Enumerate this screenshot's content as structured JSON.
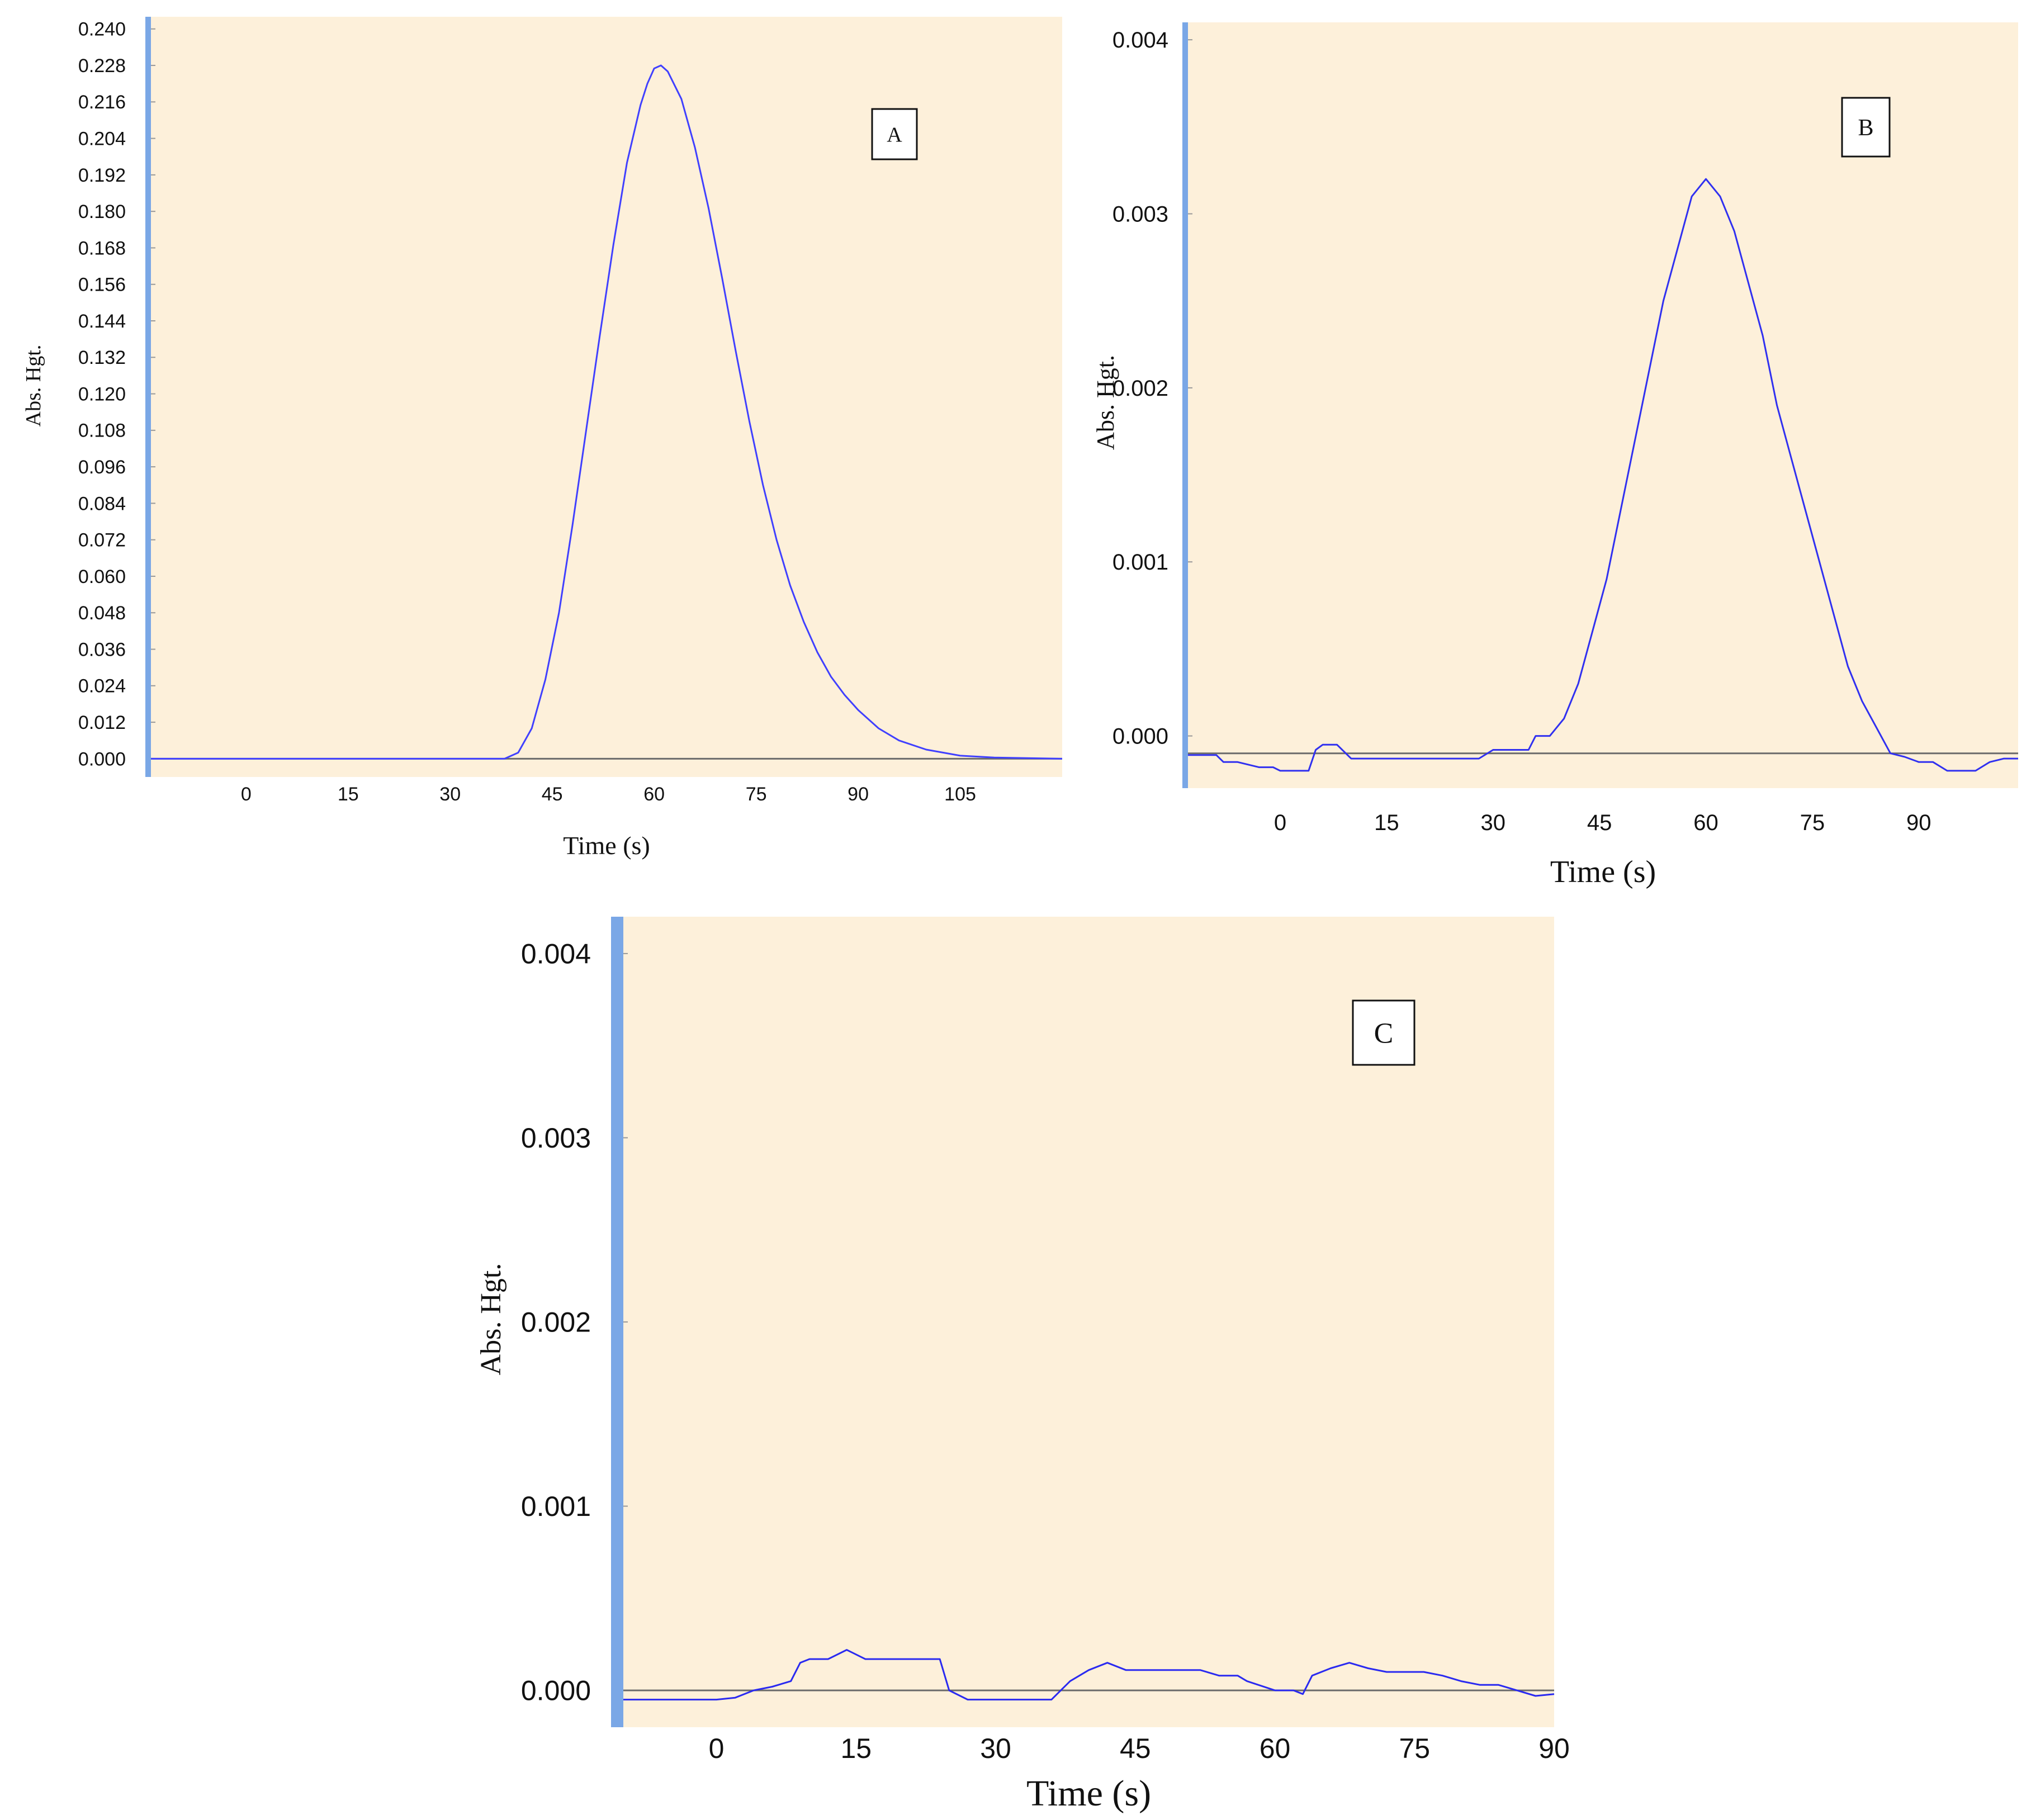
{
  "chart_data": [
    {
      "id": "A",
      "type": "line",
      "panel_label": "A",
      "xlabel": "Time (s)",
      "ylabel": "Abs. Hgt.",
      "xlim": [
        -14,
        120
      ],
      "ylim": [
        -0.006,
        0.244
      ],
      "xticks": [
        0,
        15,
        30,
        45,
        60,
        75,
        90,
        105
      ],
      "yticks": [
        "0.000",
        "0.012",
        "0.024",
        "0.036",
        "0.048",
        "0.060",
        "0.072",
        "0.084",
        "0.096",
        "0.108",
        "0.120",
        "0.132",
        "0.144",
        "0.156",
        "0.168",
        "0.180",
        "0.192",
        "0.204",
        "0.216",
        "0.228",
        "0.240"
      ],
      "baseline": 0,
      "series": [
        {
          "color": "#4040ff",
          "x": [
            -14,
            0,
            20,
            38,
            40,
            42,
            44,
            46,
            48,
            50,
            52,
            54,
            56,
            58,
            59,
            60,
            61,
            62,
            64,
            66,
            68,
            70,
            72,
            74,
            76,
            78,
            80,
            82,
            84,
            86,
            88,
            90,
            93,
            96,
            100,
            105,
            110,
            120
          ],
          "y": [
            0.0,
            0.0,
            0.0,
            0.0,
            0.002,
            0.01,
            0.026,
            0.048,
            0.077,
            0.108,
            0.139,
            0.169,
            0.196,
            0.215,
            0.222,
            0.227,
            0.228,
            0.226,
            0.217,
            0.201,
            0.181,
            0.158,
            0.134,
            0.111,
            0.09,
            0.072,
            0.057,
            0.045,
            0.035,
            0.027,
            0.021,
            0.016,
            0.01,
            0.006,
            0.003,
            0.001,
            0.0004,
            0.0
          ]
        }
      ]
    },
    {
      "id": "B",
      "type": "line",
      "panel_label": "B",
      "xlabel": "Time (s)",
      "ylabel": "Abs. Hgt.",
      "xlim": [
        -13,
        104
      ],
      "ylim": [
        -0.0003,
        0.0041
      ],
      "xticks": [
        0,
        15,
        30,
        45,
        60,
        75,
        90
      ],
      "yticks": [
        "0.000",
        "0.001",
        "0.002",
        "0.003",
        "0.004"
      ],
      "baseline": -0.0001,
      "series": [
        {
          "color": "#3030f0",
          "x": [
            -13,
            -9,
            -8,
            -6,
            -3,
            -1,
            0,
            3,
            4,
            5,
            6,
            8,
            10,
            12,
            16,
            20,
            25,
            28,
            30,
            33,
            35,
            36,
            38,
            40,
            42,
            44,
            46,
            48,
            50,
            52,
            54,
            56,
            58,
            60,
            62,
            64,
            66,
            68,
            70,
            72,
            74,
            76,
            78,
            80,
            82,
            84,
            86,
            88,
            90,
            92,
            94,
            96,
            98,
            100,
            102,
            104
          ],
          "y": [
            -0.00011,
            -0.00011,
            -0.00015,
            -0.00015,
            -0.00018,
            -0.00018,
            -0.0002,
            -0.0002,
            -0.0002,
            -8e-05,
            -5e-05,
            -5e-05,
            -0.00013,
            -0.00013,
            -0.00013,
            -0.00013,
            -0.00013,
            -0.00013,
            -8e-05,
            -8e-05,
            -8e-05,
            0.0,
            0.0,
            0.0001,
            0.0003,
            0.0006,
            0.0009,
            0.0013,
            0.0017,
            0.0021,
            0.0025,
            0.0028,
            0.0031,
            0.0032,
            0.0031,
            0.0029,
            0.0026,
            0.0023,
            0.0019,
            0.0016,
            0.0013,
            0.001,
            0.0007,
            0.0004,
            0.0002,
            5e-05,
            -0.0001,
            -0.00012,
            -0.00015,
            -0.00015,
            -0.0002,
            -0.0002,
            -0.0002,
            -0.00015,
            -0.00013,
            -0.00013
          ]
        }
      ]
    },
    {
      "id": "C",
      "type": "line",
      "panel_label": "C",
      "xlabel": "Time (s)",
      "ylabel": "Abs. Hgt.",
      "xlim": [
        -10,
        90
      ],
      "ylim": [
        -0.0002,
        0.0042
      ],
      "xticks": [
        0,
        15,
        30,
        45,
        60,
        75,
        "90"
      ],
      "yticks": [
        "0.000",
        "0.001",
        "0.002",
        "0.003",
        "0.004"
      ],
      "baseline": 0,
      "series": [
        {
          "color": "#2a2af0",
          "x": [
            -10,
            -8,
            -6,
            -4,
            -2,
            0,
            2,
            4,
            6,
            8,
            9,
            10,
            12,
            14,
            16,
            18,
            20,
            22,
            24,
            25,
            27,
            30,
            33,
            35,
            36,
            37,
            38,
            40,
            42,
            44,
            46,
            48,
            50,
            52,
            54,
            56,
            57,
            60,
            62,
            63,
            64,
            66,
            68,
            70,
            72,
            74,
            76,
            78,
            80,
            82,
            84,
            86,
            88,
            90
          ],
          "y": [
            -5e-05,
            -5e-05,
            -5e-05,
            -5e-05,
            -5e-05,
            -5e-05,
            -4e-05,
            0.0,
            2e-05,
            5e-05,
            0.00015,
            0.00017,
            0.00017,
            0.00022,
            0.00017,
            0.00017,
            0.00017,
            0.00017,
            0.00017,
            0.0,
            -5e-05,
            -5e-05,
            -5e-05,
            -5e-05,
            -5e-05,
            0.0,
            5e-05,
            0.00011,
            0.00015,
            0.00011,
            0.00011,
            0.00011,
            0.00011,
            0.00011,
            8e-05,
            8e-05,
            5e-05,
            0.0,
            0.0,
            -2e-05,
            8e-05,
            0.00012,
            0.00015,
            0.00012,
            0.0001,
            0.0001,
            0.0001,
            8e-05,
            5e-05,
            3e-05,
            3e-05,
            0.0,
            -3e-05,
            -2e-05
          ]
        }
      ]
    }
  ]
}
